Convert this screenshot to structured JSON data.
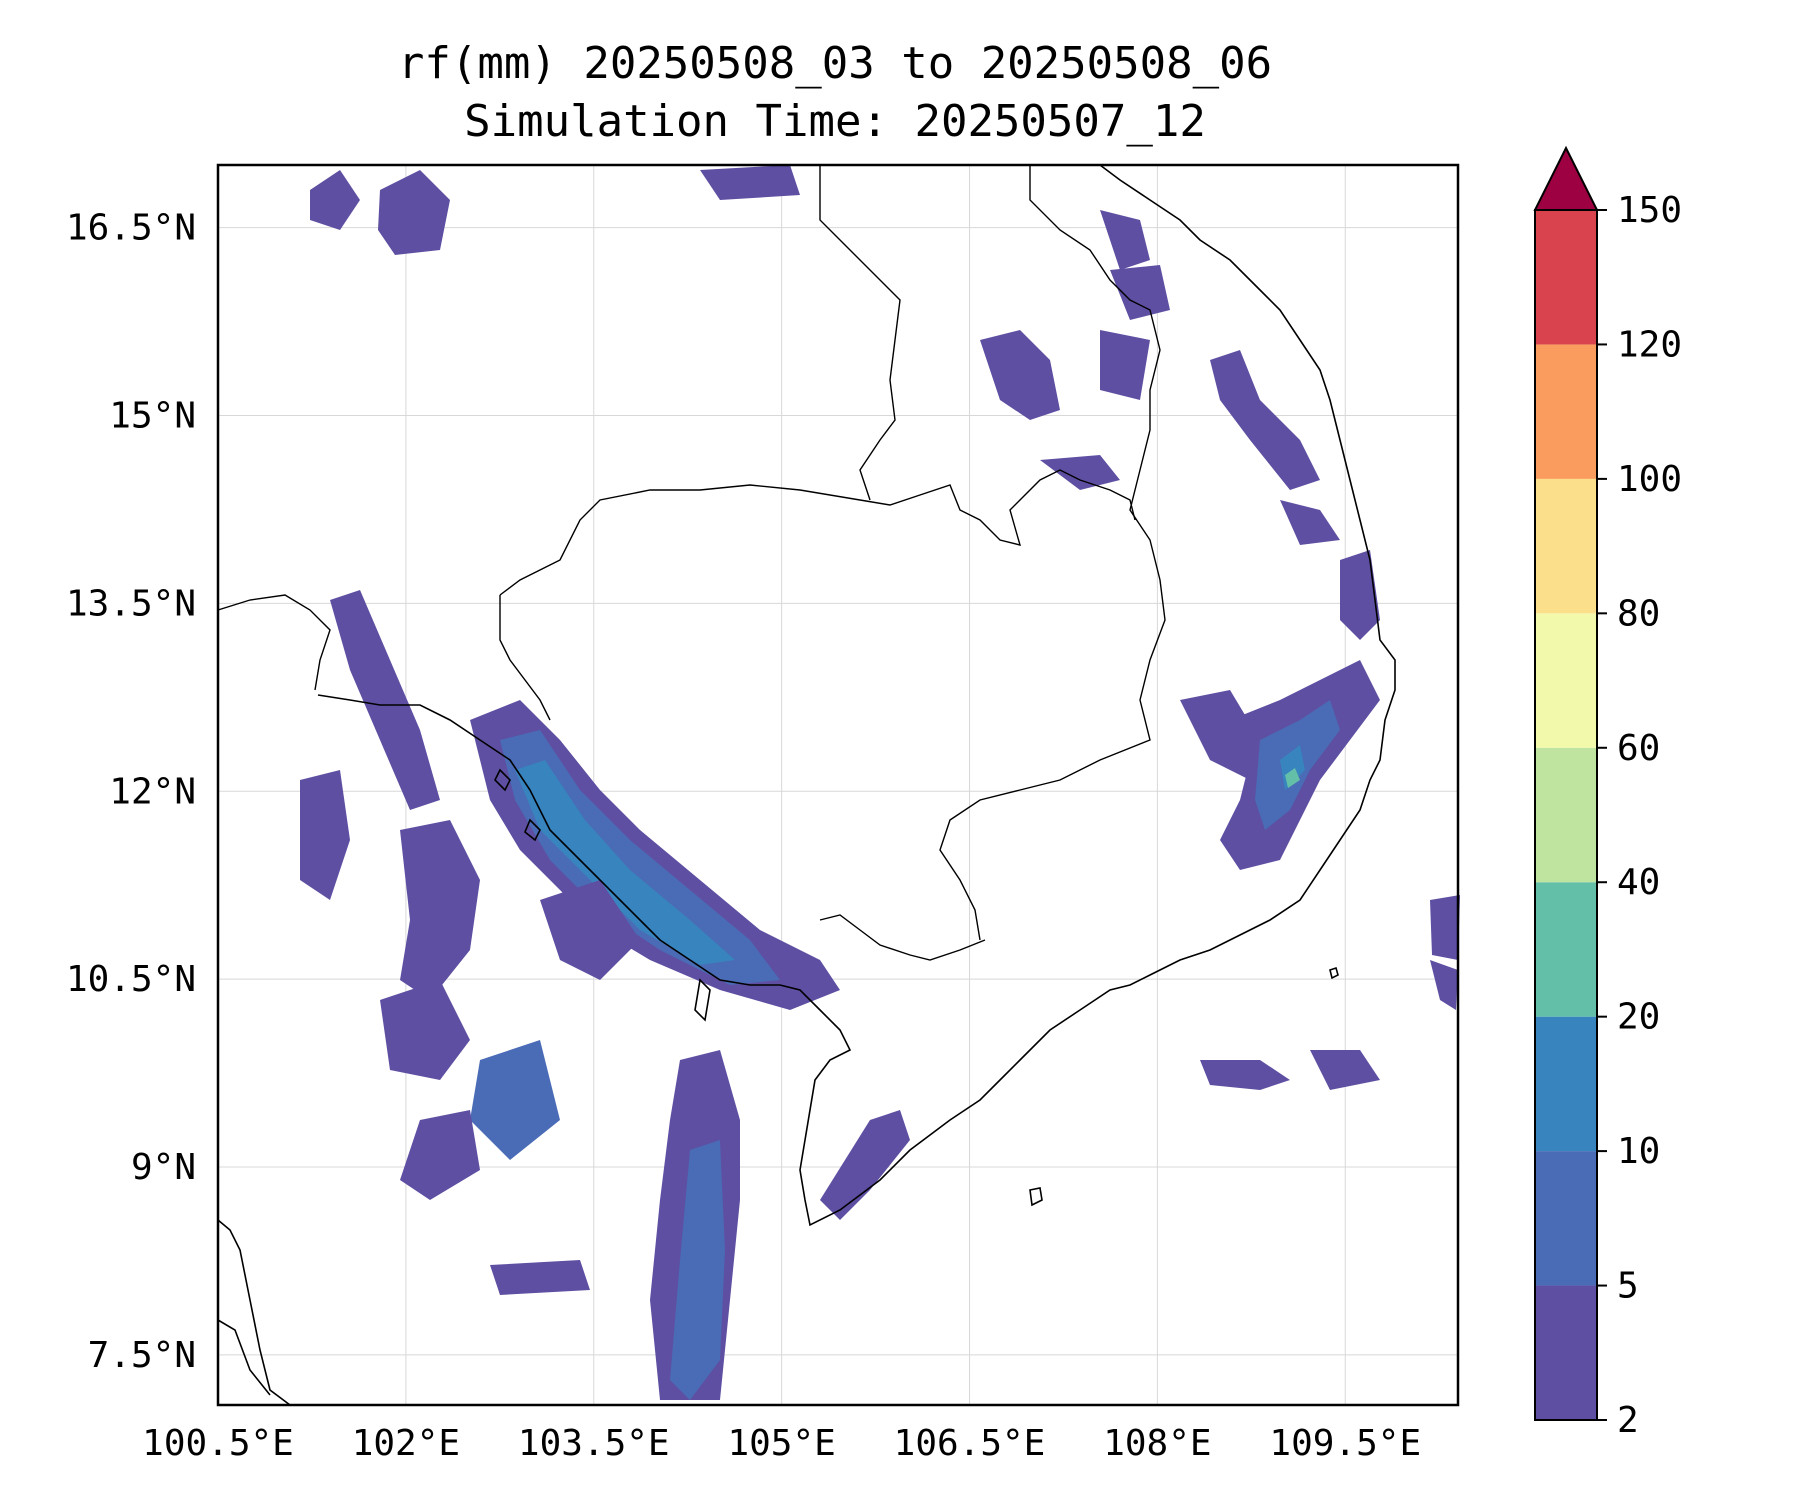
{
  "title": {
    "line1": "rf(mm) 20250508_03 to 20250508_06",
    "line2": "Simulation Time: 20250507_12"
  },
  "axes": {
    "lon_ticks": [
      "100.5°E",
      "102°E",
      "103.5°E",
      "105°E",
      "106.5°E",
      "108°E",
      "109.5°E"
    ],
    "lat_ticks": [
      "16.5°N",
      "15°N",
      "13.5°N",
      "12°N",
      "10.5°N",
      "9°N",
      "7.5°N"
    ],
    "lon_range": [
      100.5,
      110.4
    ],
    "lat_range": [
      7.1,
      17.0
    ],
    "grid": true
  },
  "colorbar": {
    "levels": [
      2,
      5,
      10,
      20,
      40,
      60,
      80,
      100,
      120,
      150
    ],
    "labels": [
      "2",
      "5",
      "10",
      "20",
      "40",
      "60",
      "80",
      "100",
      "120",
      "150"
    ],
    "colors": [
      "#5e4fa2",
      "#4a6bb5",
      "#3884bf",
      "#64bfa9",
      "#bfe4a0",
      "#f2f9ab",
      "#fcdf8a",
      "#f99c5d",
      "#d8434e",
      "#9e0142"
    ],
    "extend": "max"
  }
}
